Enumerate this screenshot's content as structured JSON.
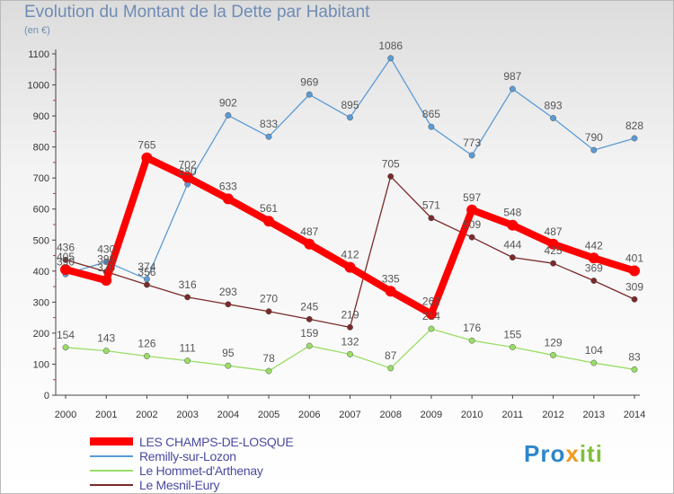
{
  "title": "Evolution du Montant de la Dette par Habitant",
  "unit": "(en €)",
  "logo": "Proxiti",
  "chart_data": {
    "type": "line",
    "x": [
      "2000",
      "2001",
      "2002",
      "2003",
      "2004",
      "2005",
      "2006",
      "2007",
      "2008",
      "2009",
      "2010",
      "2011",
      "2012",
      "2013",
      "2014"
    ],
    "y_ticks": [
      0,
      100,
      200,
      300,
      400,
      500,
      600,
      700,
      800,
      900,
      1000,
      1100
    ],
    "ylim": [
      0,
      1100
    ],
    "grid": false,
    "legend_position": "bottom-left",
    "series": [
      {
        "name": "LES CHAMPS-DE-LOSQUE",
        "color": "#ff0000",
        "emphasis": true,
        "values": [
          405,
          370,
          765,
          702,
          633,
          561,
          487,
          412,
          335,
          262,
          597,
          548,
          487,
          442,
          401
        ],
        "labels": [
          "405",
          "370",
          "765",
          "702",
          "633",
          "561",
          "487",
          "412",
          "335",
          "262",
          "597",
          "548",
          "487",
          "442",
          "401"
        ]
      },
      {
        "name": "Remilly-sur-Lozon",
        "color": "#5b9bd5",
        "values": [
          390,
          430,
          374,
          680,
          902,
          833,
          969,
          895,
          1086,
          865,
          773,
          987,
          893,
          790,
          828
        ],
        "labels": [
          "390",
          "430",
          "374",
          "680",
          "902",
          "833",
          "969",
          "895",
          "1086",
          "865",
          "773",
          "987",
          "893",
          "790",
          "828"
        ]
      },
      {
        "name": "Le Hommet-d'Arthenay",
        "color": "#99dd66",
        "values": [
          154,
          143,
          126,
          111,
          95,
          78,
          159,
          132,
          87,
          214,
          176,
          155,
          129,
          104,
          83
        ],
        "labels": [
          "154",
          "143",
          "126",
          "111",
          "95",
          "78",
          "159",
          "132",
          "87",
          "214",
          "176",
          "155",
          "129",
          "104",
          "83"
        ]
      },
      {
        "name": "Le Mesnil-Eury",
        "color": "#7b2a2a",
        "values": [
          436,
          398,
          356,
          316,
          293,
          270,
          245,
          219,
          705,
          571,
          509,
          444,
          425,
          369,
          309
        ],
        "labels": [
          "436",
          "398",
          "356",
          "316",
          "293",
          "270",
          "245",
          "219",
          "705",
          "571",
          "509",
          "444",
          "425",
          "369",
          "309"
        ]
      }
    ]
  }
}
